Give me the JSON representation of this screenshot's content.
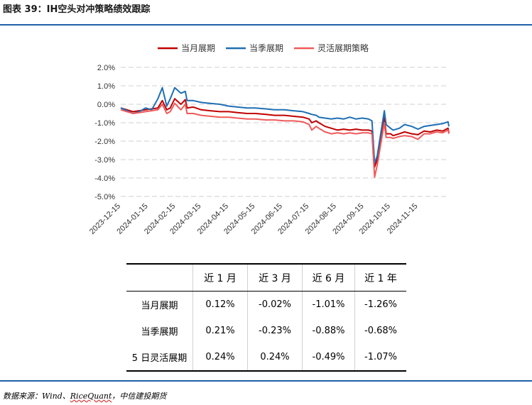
{
  "title": "图表 39：IH空头对冲策略绩效跟踪",
  "source": {
    "prefix": "数据来源：Wind、",
    "underlined": "RiceQuant",
    "suffix": "，中信建投期货"
  },
  "colors": {
    "rule": "#1f5fa8",
    "series": [
      "#c00000",
      "#1f6fb5",
      "#f05a5a"
    ]
  },
  "chart_data": {
    "type": "line",
    "legend_position": "top",
    "grid": "horizontal-dashed",
    "ylim": [
      -5.0,
      2.0
    ],
    "yticks": [
      "2.0%",
      "1.0%",
      "0.0%",
      "-1.0%",
      "-2.0%",
      "-3.0%",
      "-4.0%",
      "-5.0%"
    ],
    "ytick_values": [
      2.0,
      1.0,
      0.0,
      -1.0,
      -2.0,
      -3.0,
      -4.0,
      -5.0
    ],
    "xlim": [
      "2023-12-15",
      "2024-12-20"
    ],
    "xticks": [
      "2023-12-15",
      "2024-01-15",
      "2024-02-15",
      "2024-03-15",
      "2024-04-15",
      "2024-05-15",
      "2024-06-15",
      "2024-07-15",
      "2024-08-15",
      "2024-09-15",
      "2024-10-15",
      "2024-11-15"
    ],
    "series": [
      {
        "name": "当月展期",
        "points": [
          [
            "2023-12-15",
            -0.2
          ],
          [
            "2023-12-22",
            -0.3
          ],
          [
            "2023-12-29",
            -0.4
          ],
          [
            "2024-01-05",
            -0.35
          ],
          [
            "2024-01-12",
            -0.3
          ],
          [
            "2024-01-19",
            -0.25
          ],
          [
            "2024-01-26",
            -0.2
          ],
          [
            "2024-01-31",
            0.2
          ],
          [
            "2024-02-05",
            -0.3
          ],
          [
            "2024-02-09",
            -0.2
          ],
          [
            "2024-02-14",
            0.3
          ],
          [
            "2024-02-21",
            0.0
          ],
          [
            "2024-02-26",
            0.25
          ],
          [
            "2024-02-28",
            -0.2
          ],
          [
            "2024-03-06",
            -0.15
          ],
          [
            "2024-03-15",
            -0.3
          ],
          [
            "2024-03-25",
            -0.35
          ],
          [
            "2024-04-05",
            -0.4
          ],
          [
            "2024-04-15",
            -0.4
          ],
          [
            "2024-04-25",
            -0.45
          ],
          [
            "2024-05-06",
            -0.5
          ],
          [
            "2024-05-15",
            -0.5
          ],
          [
            "2024-05-27",
            -0.55
          ],
          [
            "2024-06-06",
            -0.6
          ],
          [
            "2024-06-17",
            -0.6
          ],
          [
            "2024-06-27",
            -0.65
          ],
          [
            "2024-07-08",
            -0.7
          ],
          [
            "2024-07-15",
            -0.8
          ],
          [
            "2024-07-18",
            -1.0
          ],
          [
            "2024-07-23",
            -0.9
          ],
          [
            "2024-07-26",
            -1.0
          ],
          [
            "2024-08-02",
            -1.2
          ],
          [
            "2024-08-09",
            -1.3
          ],
          [
            "2024-08-16",
            -1.4
          ],
          [
            "2024-08-23",
            -1.35
          ],
          [
            "2024-08-30",
            -1.4
          ],
          [
            "2024-09-06",
            -1.35
          ],
          [
            "2024-09-13",
            -1.4
          ],
          [
            "2024-09-20",
            -1.4
          ],
          [
            "2024-09-24",
            -1.45
          ],
          [
            "2024-09-27",
            -3.4
          ],
          [
            "2024-09-30",
            -3.0
          ],
          [
            "2024-10-08",
            -0.7
          ],
          [
            "2024-10-10",
            -1.6
          ],
          [
            "2024-10-15",
            -1.6
          ],
          [
            "2024-10-18",
            -1.7
          ],
          [
            "2024-10-25",
            -1.6
          ],
          [
            "2024-10-31",
            -1.5
          ],
          [
            "2024-11-08",
            -1.6
          ],
          [
            "2024-11-15",
            -1.65
          ],
          [
            "2024-11-22",
            -1.45
          ],
          [
            "2024-11-29",
            -1.5
          ],
          [
            "2024-12-06",
            -1.4
          ],
          [
            "2024-12-13",
            -1.45
          ],
          [
            "2024-12-19",
            -1.3
          ],
          [
            "2024-12-20",
            -1.55
          ]
        ]
      },
      {
        "name": "当季展期",
        "points": [
          [
            "2023-12-15",
            -0.2
          ],
          [
            "2023-12-22",
            -0.35
          ],
          [
            "2023-12-29",
            -0.5
          ],
          [
            "2024-01-05",
            -0.4
          ],
          [
            "2024-01-12",
            -0.2
          ],
          [
            "2024-01-19",
            -0.3
          ],
          [
            "2024-01-26",
            0.3
          ],
          [
            "2024-01-31",
            0.9
          ],
          [
            "2024-02-05",
            -0.1
          ],
          [
            "2024-02-09",
            0.3
          ],
          [
            "2024-02-14",
            0.9
          ],
          [
            "2024-02-21",
            0.6
          ],
          [
            "2024-02-26",
            0.7
          ],
          [
            "2024-02-28",
            0.2
          ],
          [
            "2024-03-06",
            0.2
          ],
          [
            "2024-03-15",
            0.1
          ],
          [
            "2024-03-25",
            0.05
          ],
          [
            "2024-04-05",
            0.0
          ],
          [
            "2024-04-15",
            -0.1
          ],
          [
            "2024-04-25",
            -0.15
          ],
          [
            "2024-05-06",
            -0.2
          ],
          [
            "2024-05-15",
            -0.2
          ],
          [
            "2024-05-27",
            -0.25
          ],
          [
            "2024-06-06",
            -0.3
          ],
          [
            "2024-06-17",
            -0.3
          ],
          [
            "2024-06-27",
            -0.35
          ],
          [
            "2024-07-08",
            -0.4
          ],
          [
            "2024-07-15",
            -0.5
          ],
          [
            "2024-07-18",
            -0.55
          ],
          [
            "2024-07-23",
            -0.6
          ],
          [
            "2024-07-26",
            -0.7
          ],
          [
            "2024-08-02",
            -0.75
          ],
          [
            "2024-08-09",
            -0.8
          ],
          [
            "2024-08-16",
            -0.75
          ],
          [
            "2024-08-23",
            -0.8
          ],
          [
            "2024-08-30",
            -0.7
          ],
          [
            "2024-09-06",
            -0.8
          ],
          [
            "2024-09-13",
            -0.75
          ],
          [
            "2024-09-20",
            -0.8
          ],
          [
            "2024-09-24",
            -0.9
          ],
          [
            "2024-09-27",
            -3.2
          ],
          [
            "2024-09-30",
            -2.8
          ],
          [
            "2024-10-08",
            -0.35
          ],
          [
            "2024-10-10",
            -1.1
          ],
          [
            "2024-10-15",
            -1.3
          ],
          [
            "2024-10-18",
            -1.4
          ],
          [
            "2024-10-25",
            -1.3
          ],
          [
            "2024-10-31",
            -1.1
          ],
          [
            "2024-11-08",
            -1.2
          ],
          [
            "2024-11-15",
            -1.35
          ],
          [
            "2024-11-22",
            -1.2
          ],
          [
            "2024-11-29",
            -1.15
          ],
          [
            "2024-12-06",
            -1.1
          ],
          [
            "2024-12-13",
            -1.05
          ],
          [
            "2024-12-19",
            -0.95
          ],
          [
            "2024-12-20",
            -1.2
          ]
        ]
      },
      {
        "name": "灵活展期策略",
        "points": [
          [
            "2023-12-15",
            -0.3
          ],
          [
            "2023-12-22",
            -0.4
          ],
          [
            "2023-12-29",
            -0.5
          ],
          [
            "2024-01-05",
            -0.45
          ],
          [
            "2024-01-12",
            -0.4
          ],
          [
            "2024-01-19",
            -0.35
          ],
          [
            "2024-01-26",
            -0.3
          ],
          [
            "2024-01-31",
            0.0
          ],
          [
            "2024-02-05",
            -0.5
          ],
          [
            "2024-02-09",
            -0.4
          ],
          [
            "2024-02-14",
            0.05
          ],
          [
            "2024-02-21",
            -0.3
          ],
          [
            "2024-02-26",
            0.0
          ],
          [
            "2024-02-28",
            -0.5
          ],
          [
            "2024-03-06",
            -0.5
          ],
          [
            "2024-03-15",
            -0.6
          ],
          [
            "2024-03-25",
            -0.65
          ],
          [
            "2024-04-05",
            -0.7
          ],
          [
            "2024-04-15",
            -0.7
          ],
          [
            "2024-04-25",
            -0.75
          ],
          [
            "2024-05-06",
            -0.8
          ],
          [
            "2024-05-15",
            -0.8
          ],
          [
            "2024-05-27",
            -0.85
          ],
          [
            "2024-06-06",
            -0.85
          ],
          [
            "2024-06-17",
            -0.9
          ],
          [
            "2024-06-27",
            -0.9
          ],
          [
            "2024-07-08",
            -0.95
          ],
          [
            "2024-07-15",
            -1.1
          ],
          [
            "2024-07-18",
            -1.4
          ],
          [
            "2024-07-23",
            -1.2
          ],
          [
            "2024-07-26",
            -1.3
          ],
          [
            "2024-08-02",
            -1.5
          ],
          [
            "2024-08-09",
            -1.6
          ],
          [
            "2024-08-16",
            -1.55
          ],
          [
            "2024-08-23",
            -1.6
          ],
          [
            "2024-08-30",
            -1.55
          ],
          [
            "2024-09-06",
            -1.6
          ],
          [
            "2024-09-13",
            -1.55
          ],
          [
            "2024-09-20",
            -1.55
          ],
          [
            "2024-09-24",
            -1.6
          ],
          [
            "2024-09-27",
            -3.95
          ],
          [
            "2024-09-30",
            -3.3
          ],
          [
            "2024-10-08",
            -1.0
          ],
          [
            "2024-10-10",
            -1.8
          ],
          [
            "2024-10-15",
            -1.8
          ],
          [
            "2024-10-18",
            -1.85
          ],
          [
            "2024-10-25",
            -1.75
          ],
          [
            "2024-10-31",
            -1.7
          ],
          [
            "2024-11-08",
            -1.75
          ],
          [
            "2024-11-15",
            -1.9
          ],
          [
            "2024-11-22",
            -1.6
          ],
          [
            "2024-11-29",
            -1.6
          ],
          [
            "2024-12-06",
            -1.5
          ],
          [
            "2024-12-13",
            -1.55
          ],
          [
            "2024-12-19",
            -1.4
          ],
          [
            "2024-12-20",
            -1.6
          ]
        ]
      }
    ]
  },
  "table": {
    "headers": [
      "",
      "近 1 月",
      "近 3 月",
      "近 6 月",
      "近 1 年"
    ],
    "rows": [
      [
        "当月展期",
        "0.12%",
        "-0.02%",
        "-1.01%",
        "-1.26%"
      ],
      [
        "当季展期",
        "0.21%",
        "-0.23%",
        "-0.88%",
        "-0.68%"
      ],
      [
        "5 日灵活展期",
        "0.24%",
        "0.24%",
        "-0.49%",
        "-1.07%"
      ]
    ]
  }
}
